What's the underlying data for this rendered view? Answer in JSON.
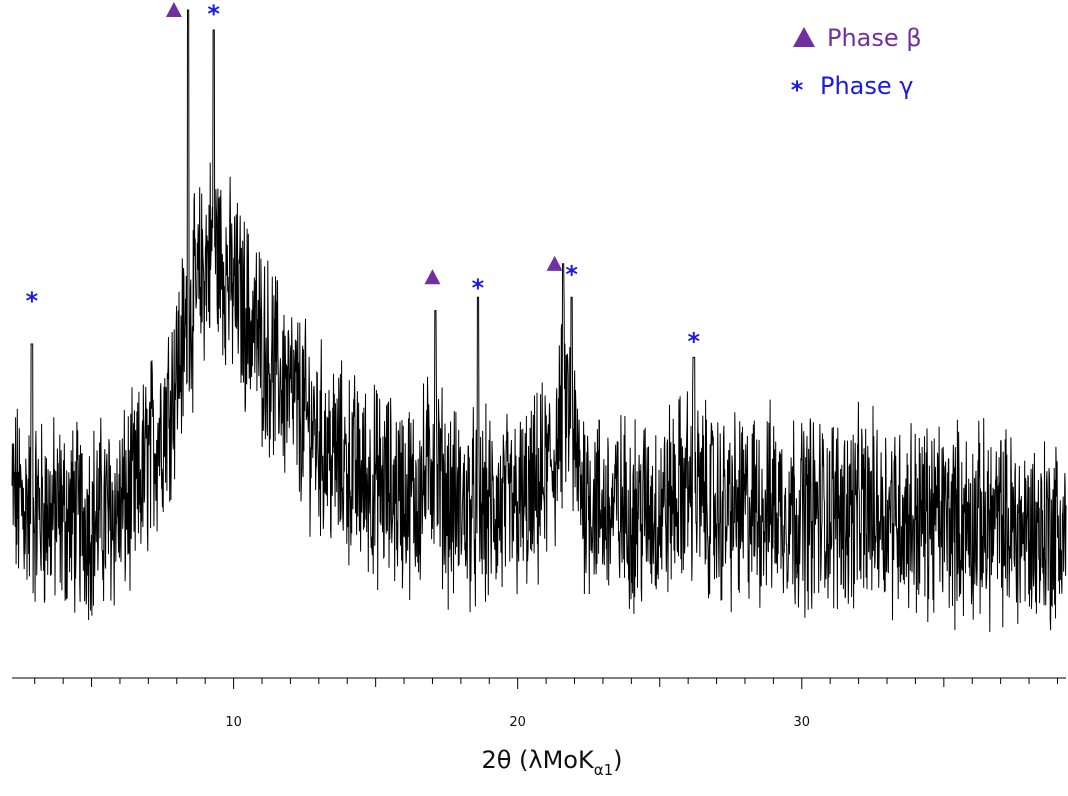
{
  "colors": {
    "beta": "#7030A0",
    "gamma": "#1A1AE6",
    "trace": "#000000"
  },
  "legend": {
    "position": "top-right",
    "entries": [
      {
        "symbol": "triangle",
        "label": "Phase β",
        "color": "#7030A0"
      },
      {
        "symbol": "asterisk",
        "label": "Phase γ",
        "color": "#1A1AE6"
      }
    ]
  },
  "chart_data": {
    "type": "line",
    "title": "",
    "xlabel": {
      "main": "2θ (λMoK",
      "subscript": "α1",
      "suffix": ")"
    },
    "ylabel": "",
    "xlim": [
      2.2,
      39.3
    ],
    "ylim": [
      0,
      100
    ],
    "x_ticks_major": [
      10,
      20,
      30
    ],
    "x_tick_labels": [
      "10",
      "20",
      "30"
    ],
    "x_ticks_minor_step": 1,
    "grid": false,
    "show_y_axis": false,
    "series": [
      {
        "values_description_free": true,
        "x": [
          2.2,
          3.0,
          4.0,
          5.0,
          6.0,
          6.6,
          7.0,
          7.5,
          8.0,
          8.5,
          9.0,
          9.3,
          9.8,
          10.5,
          11.5,
          12.5,
          13.5,
          14.5,
          15.5,
          16.5,
          17.0,
          17.6,
          18.5,
          19.5,
          20.5,
          21.3,
          21.7,
          22.2,
          23.0,
          24.0,
          25.0,
          26.0,
          27.0,
          28.0,
          29.0,
          30.0,
          31.0,
          32.0,
          33.0,
          34.0,
          35.0,
          36.0,
          37.0,
          38.0,
          39.3
        ],
        "y": [
          27,
          25,
          24,
          24,
          25,
          28,
          33,
          38,
          46,
          55,
          62,
          65,
          60,
          54,
          46,
          39,
          33,
          30,
          28,
          27,
          33,
          26,
          25,
          25,
          26,
          33,
          42,
          29,
          25,
          25,
          25,
          29,
          25,
          25,
          26,
          25,
          25,
          25,
          25,
          24,
          24,
          23,
          23,
          22,
          22
        ]
      }
    ],
    "peaks": [
      {
        "x": 8.4,
        "y": 100,
        "phase": "beta"
      },
      {
        "x": 9.3,
        "y": 97,
        "phase": "gamma"
      },
      {
        "x": 17.1,
        "y": 55,
        "phase": "beta"
      },
      {
        "x": 18.6,
        "y": 57,
        "phase": "gamma"
      },
      {
        "x": 21.6,
        "y": 62,
        "phase": "beta"
      },
      {
        "x": 21.9,
        "y": 57,
        "phase": "gamma"
      },
      {
        "x": 26.2,
        "y": 48,
        "phase": "gamma"
      },
      {
        "x": 2.9,
        "y": 50,
        "phase": "gamma"
      }
    ],
    "markers": [
      {
        "phase": "beta",
        "x": 7.9,
        "y": 100
      },
      {
        "phase": "gamma",
        "x": 9.3,
        "y": 100
      },
      {
        "phase": "gamma",
        "x": 2.9,
        "y": 57
      },
      {
        "phase": "beta",
        "x": 17.0,
        "y": 60
      },
      {
        "phase": "gamma",
        "x": 18.6,
        "y": 59
      },
      {
        "phase": "beta",
        "x": 21.3,
        "y": 62
      },
      {
        "phase": "gamma",
        "x": 21.9,
        "y": 61
      },
      {
        "phase": "gamma",
        "x": 26.2,
        "y": 51
      }
    ]
  }
}
